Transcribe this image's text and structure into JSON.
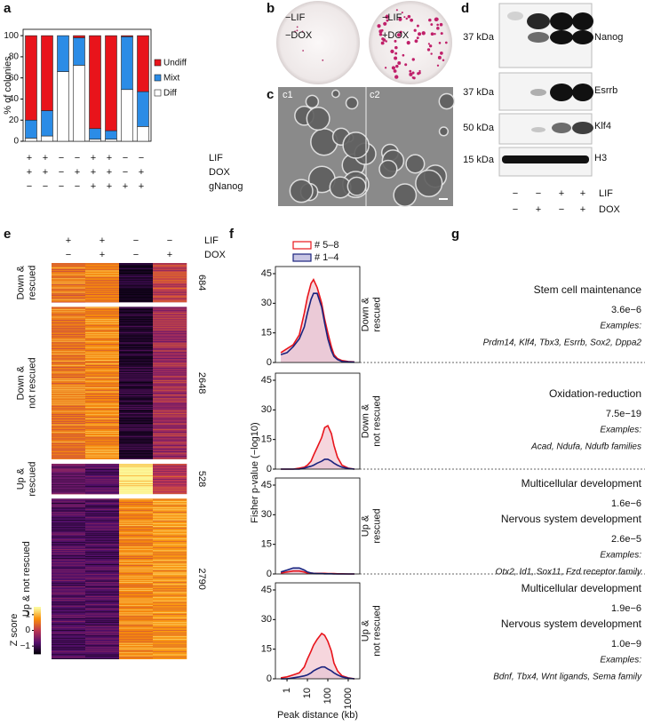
{
  "panel_labels": [
    "a",
    "b",
    "c",
    "d",
    "e",
    "f",
    "g"
  ],
  "chart_data": [
    {
      "type": "bar",
      "stacked": true,
      "ylabel": "% of colonies",
      "categories": [
        null,
        null,
        null,
        null,
        null,
        null,
        null,
        null
      ],
      "ylim": [
        0,
        106
      ],
      "yticks": [
        0,
        20,
        40,
        60,
        80,
        100
      ],
      "series": [
        {
          "name": "Undiff",
          "color": "#e8141b",
          "values": [
            80,
            71,
            0,
            2,
            88,
            90,
            1,
            53
          ]
        },
        {
          "name": "Mixt",
          "color": "#2b8ce6",
          "values": [
            17,
            24,
            34,
            26,
            10,
            8,
            50,
            33
          ]
        },
        {
          "name": "Diff",
          "color": "#ffffff",
          "values": [
            3,
            5,
            66,
            72,
            2,
            2,
            49,
            14
          ]
        }
      ],
      "conditions": [
        {
          "name": "LIF",
          "signs": [
            "+",
            "+",
            "−",
            "−",
            "+",
            "+",
            "−",
            "−"
          ]
        },
        {
          "name": "DOX",
          "signs": [
            "+",
            "+",
            "−",
            "+",
            "+",
            "+",
            "−",
            "+"
          ]
        },
        {
          "name": "gNanog",
          "signs": [
            "−",
            "−",
            "−",
            "−",
            "+",
            "+",
            "+",
            "+"
          ]
        }
      ]
    },
    {
      "type": "heatmap",
      "columns": [
        {
          "name": "LIF",
          "signs": [
            "+",
            "+",
            "−",
            "−"
          ]
        },
        {
          "name": "DOX",
          "signs": [
            "−",
            "+",
            "−",
            "+"
          ]
        }
      ],
      "rows": [
        {
          "label": [
            "Down &",
            "rescued"
          ],
          "count": 684
        },
        {
          "label": [
            "Down &",
            "not rescued"
          ],
          "count": 2648
        },
        {
          "label": [
            "Up &",
            "rescued"
          ],
          "count": 528
        },
        {
          "label": [
            "Up & not rescued"
          ],
          "count": 2790
        }
      ],
      "values": [
        [
          0.6,
          0.7,
          -1.3,
          0.1
        ],
        [
          0.6,
          0.7,
          -1.2,
          -0.2
        ],
        [
          -0.6,
          -0.8,
          1.4,
          0.0
        ],
        [
          -0.8,
          -0.8,
          0.7,
          0.8
        ]
      ],
      "zlim": [
        -1.5,
        1.5
      ],
      "colorbar": {
        "label": "Z score",
        "ticks": [
          1,
          0,
          {
            "value": -1,
            "label": "−1"
          }
        ]
      }
    },
    {
      "type": "line",
      "xlog": true,
      "fill": true,
      "xlabel": "Peak distance (kb)",
      "ylabel": "Fisher p-value (−log10)",
      "xlim": [
        0.27,
        3700
      ],
      "xticks": [
        1,
        10,
        100,
        1000
      ],
      "ylim": [
        0,
        45
      ],
      "yticks": [
        0,
        15,
        30,
        45
      ],
      "series": [
        {
          "name": "# 5–8",
          "color": "#e8141b",
          "fill_color": "#f2c4cf"
        },
        {
          "name": "# 1–4",
          "color": "#1a237e",
          "fill_color": "#c9c6e4"
        }
      ],
      "x": [
        0.5,
        1,
        2,
        4,
        7,
        10,
        15,
        20,
        30,
        50,
        70,
        100,
        150,
        200,
        300,
        500,
        1000,
        2000
      ],
      "panels": [
        {
          "label": [
            "Down &",
            "rescued"
          ],
          "values": [
            [
              5,
              7,
              9,
              14,
              25,
              33,
              40,
              42,
              38,
              30,
              22,
              15,
              8,
              4,
              2,
              1,
              0.5,
              0.3
            ],
            [
              4,
              5,
              8,
              12,
              18,
              25,
              32,
              35,
              35,
              28,
              20,
              12,
              6,
              3,
              1.5,
              0.5,
              0.3,
              0.2
            ]
          ]
        },
        {
          "label": [
            "Down &",
            "not rescued"
          ],
          "values": [
            [
              0,
              0,
              0,
              0.5,
              1,
              2,
              4,
              7,
              11,
              16,
              21,
              22,
              18,
              12,
              6,
              2,
              0.5,
              0
            ],
            [
              0,
              0,
              0,
              0,
              0.5,
              1,
              1.5,
              2,
              3,
              4,
              5,
              5,
              4,
              3,
              2,
              1,
              0.3,
              0
            ]
          ]
        },
        {
          "label": [
            "Up &",
            "rescued"
          ],
          "values": [
            [
              0.5,
              1,
              1.5,
              1.5,
              1,
              0.5,
              0.5,
              0.3,
              0.3,
              0.3,
              0.3,
              0.2,
              0.2,
              0.2,
              0.1,
              0.1,
              0,
              0
            ],
            [
              1,
              2,
              3,
              3,
              2,
              1,
              0.5,
              0.3,
              0.2,
              0.2,
              0.1,
              0.1,
              0.1,
              0,
              0,
              0,
              0,
              0
            ]
          ]
        },
        {
          "label": [
            "Up &",
            "not rescued"
          ],
          "values": [
            [
              0.5,
              1,
              2,
              3,
              6,
              10,
              14,
              17,
              20,
              23,
              22,
              19,
              14,
              8,
              4,
              1.5,
              0.5,
              0
            ],
            [
              0,
              0,
              0.5,
              1,
              1.5,
              2,
              3,
              4,
              5,
              6,
              6,
              5,
              4,
              3,
              2,
              1,
              0.3,
              0
            ]
          ]
        }
      ]
    }
  ],
  "panel_b": {
    "plates": [
      [
        "−LIF",
        "−DOX"
      ],
      [
        "−LIF",
        "+DOX"
      ]
    ]
  },
  "panel_c": {
    "labels": [
      "c1",
      "c2"
    ]
  },
  "panel_d": {
    "blots": [
      {
        "name": "Nanog",
        "size": "37 kDa"
      },
      {
        "name": "Esrrb",
        "size": "37 kDa"
      },
      {
        "name": "Klf4",
        "size": "50 kDa"
      },
      {
        "name": "H3",
        "size": "15 kDa"
      }
    ],
    "conditions": [
      {
        "name": "LIF",
        "signs": [
          "−",
          "−",
          "+",
          "+"
        ]
      },
      {
        "name": "DOX",
        "signs": [
          "−",
          "+",
          "−",
          "+"
        ]
      }
    ]
  },
  "panel_g": {
    "examples_label": "Examples:",
    "blocks": [
      {
        "terms": [
          {
            "name": "Stem cell maintenance",
            "p": "3.6e−6"
          }
        ],
        "examples": "Prdm14, Klf4, Tbx3, Esrrb, Sox2, Dppa2"
      },
      {
        "terms": [
          {
            "name": "Oxidation-reduction",
            "p": "7.5e−19"
          }
        ],
        "examples": "Acad, Ndufa, Ndufb families"
      },
      {
        "terms": [
          {
            "name": "Multicellular development",
            "p": "1.6e−6"
          },
          {
            "name": "Nervous system development",
            "p": "2.6e−5"
          }
        ],
        "examples": "Otx2, Id1, Sox11, Fzd receptor family"
      },
      {
        "terms": [
          {
            "name": "Multicellular development",
            "p": "1.9e−6"
          },
          {
            "name": "Nervous system development",
            "p": "1.0e−9"
          }
        ],
        "examples": "Bdnf, Tbx4, Wnt ligands, Sema family"
      }
    ]
  }
}
